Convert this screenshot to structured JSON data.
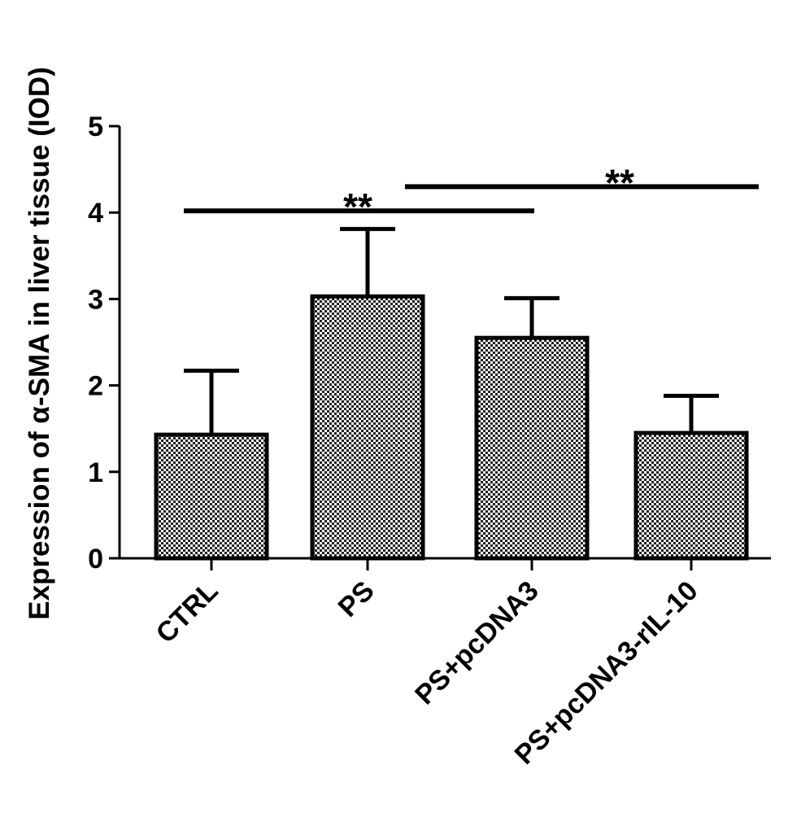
{
  "chart_data": {
    "type": "bar",
    "categories": [
      "CTRL",
      "PS",
      "PS+pcDNA3",
      "PS+pcDNA3-rIL-10"
    ],
    "values": [
      1.43,
      3.03,
      2.55,
      1.45
    ],
    "error_upper": [
      2.17,
      3.81,
      3.01,
      1.88
    ],
    "ylabel": "Expression of α-SMA in liver tissue (IOD)",
    "xlabel": "",
    "ylim": [
      0,
      5
    ],
    "yticks": [
      "0",
      "1",
      "2",
      "3",
      "4",
      "5"
    ],
    "grid": false,
    "bar_pattern": "checkered",
    "significance": [
      {
        "from": "CTRL",
        "to": "PS+pcDNA3",
        "level_y": 4.02,
        "label": "**"
      },
      {
        "from": "PS",
        "to": "PS+pcDNA3-rIL-10",
        "level_y": 4.3,
        "label": "**"
      }
    ]
  },
  "colors": {
    "bar_fill_light": "#ffffff",
    "bar_fill_dark": "#222222",
    "stroke": "#000000"
  }
}
